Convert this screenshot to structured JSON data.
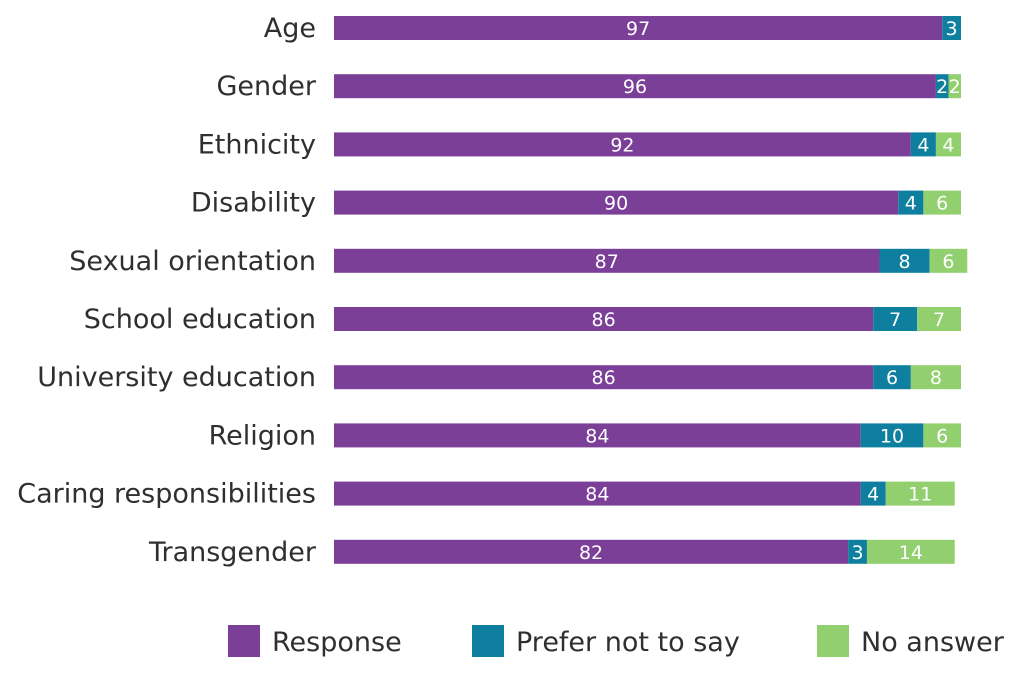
{
  "chart_data": {
    "type": "bar",
    "orientation": "horizontal",
    "stacked": true,
    "categories": [
      "Age",
      "Gender",
      "Ethnicity",
      "Disability",
      "Sexual orientation",
      "School education",
      "University education",
      "Religion",
      "Caring responsibilities",
      "Transgender"
    ],
    "series": [
      {
        "name": "Response",
        "color": "#7b3f98",
        "values": [
          97,
          96,
          92,
          90,
          87,
          86,
          86,
          84,
          84,
          82
        ]
      },
      {
        "name": "Prefer not to say",
        "color": "#0f7fa0",
        "values": [
          3,
          2,
          4,
          4,
          8,
          7,
          6,
          10,
          4,
          3
        ]
      },
      {
        "name": "No answer",
        "color": "#92cf6e",
        "values": [
          0,
          2,
          4,
          6,
          6,
          7,
          8,
          6,
          11,
          14
        ]
      }
    ],
    "xlim": [
      0,
      100
    ],
    "legend_position": "bottom",
    "grid": false
  }
}
